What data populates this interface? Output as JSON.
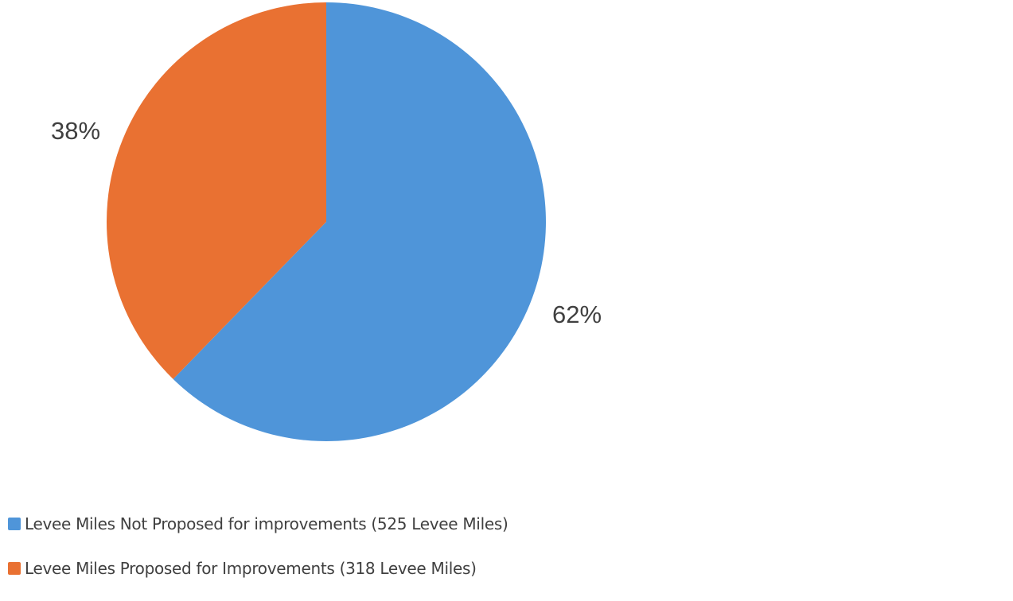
{
  "chart_data": {
    "type": "pie",
    "title": "",
    "slices": [
      {
        "name": "Levee Miles Not Proposed for improvements (525 Levee Miles)",
        "value": 525,
        "percent_label": "62%",
        "color": "#4F95D9"
      },
      {
        "name": "Levee Miles Proposed for Improvements (318 Levee Miles)",
        "value": 318,
        "percent_label": "38%",
        "color": "#E97132"
      }
    ],
    "legend_position": "bottom-left",
    "start_angle": "12 o'clock",
    "direction": "clockwise"
  }
}
